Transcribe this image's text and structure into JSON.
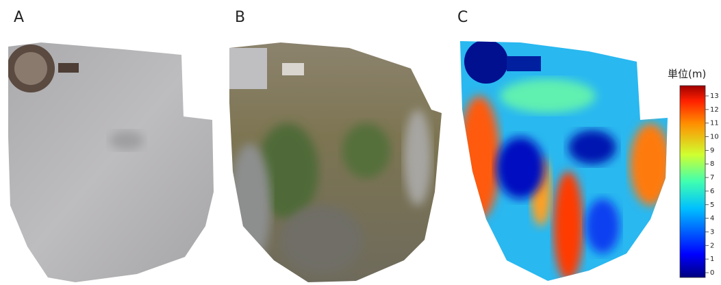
{
  "panels": [
    {
      "label": "A"
    },
    {
      "label": "B"
    },
    {
      "label": "C"
    }
  ],
  "colorbar": {
    "title": "単位(m)",
    "ticks": [
      0,
      1,
      2,
      3,
      4,
      5,
      6,
      7,
      8,
      9,
      10,
      11,
      12,
      13
    ]
  }
}
